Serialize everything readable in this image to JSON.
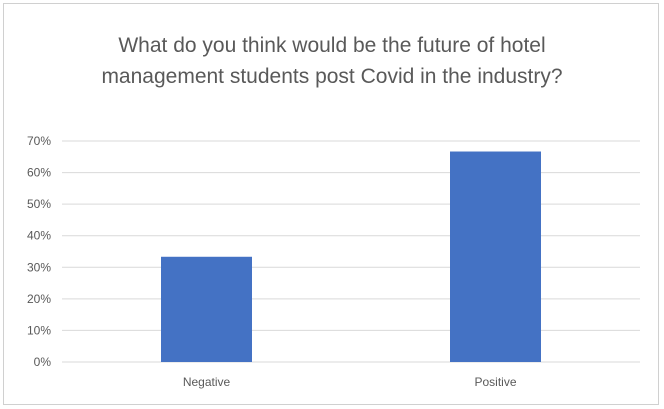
{
  "chart_data": {
    "type": "bar",
    "title": "What do you think would be the future of hotel management students post Covid in the industry?",
    "categories": [
      "Negative",
      "Positive"
    ],
    "values": [
      0.3333,
      0.6667
    ],
    "ylim": [
      0,
      0.7
    ],
    "yticks": [
      "0%",
      "10%",
      "20%",
      "30%",
      "40%",
      "50%",
      "60%",
      "70%"
    ],
    "xlabel": "",
    "ylabel": "",
    "grid": true,
    "legend": "none",
    "bar_color": "#4472C4",
    "grid_color": "#D9D9D9"
  }
}
